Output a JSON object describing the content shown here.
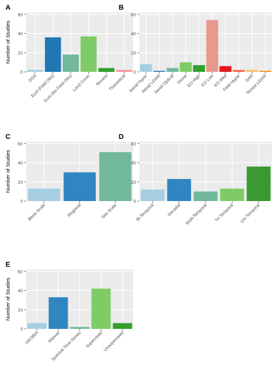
{
  "chart_data": [
    {
      "panel": "A",
      "type": "bar",
      "ylabel": "Number of Studies",
      "ylim": [
        0,
        62
      ],
      "yticks": [
        0,
        20,
        40,
        60
      ],
      "categories": [
        "DSS",
        "Ecol (Field Obs)",
        "Ecol (No Field Obs)",
        "Land Cover",
        "Review",
        "Theoretical"
      ],
      "values": [
        2,
        36,
        18,
        37,
        4,
        2
      ],
      "colors": [
        "#a6cee3",
        "#1f78b4",
        "#72b89c",
        "#7fcc67",
        "#33a02c",
        "#fb9a99"
      ]
    },
    {
      "panel": "B",
      "type": "bar",
      "ylabel": "",
      "ylim": [
        0,
        62
      ],
      "yticks": [
        0,
        20,
        40,
        60
      ],
      "categories": [
        "Aerial Hyper",
        "Aerial LiDAR",
        "Aerial Optical",
        "Drone",
        "EO High",
        "EO Low",
        "EO Med",
        "Field Hyper",
        "SAR",
        "Terrest LiDAR"
      ],
      "values": [
        8,
        1,
        4,
        10,
        7,
        54,
        6,
        2,
        2,
        1
      ],
      "colors": [
        "#a6cee3",
        "#1f78b4",
        "#72b89c",
        "#7fcc67",
        "#33a02c",
        "#e8998d",
        "#e31a1c",
        "#fb6a4a",
        "#fdbf6f",
        "#ff7f00"
      ]
    },
    {
      "panel": "C",
      "type": "bar",
      "ylabel": "Number of Studies",
      "ylim": [
        0,
        62
      ],
      "yticks": [
        0,
        20,
        40,
        60
      ],
      "categories": [
        "Block Scale",
        "Regional",
        "Site Scale"
      ],
      "values": [
        13,
        30,
        51
      ],
      "colors": [
        "#a6cee3",
        "#2f86c1",
        "#72b89c"
      ]
    },
    {
      "panel": "D",
      "type": "bar",
      "ylabel": "",
      "ylim": [
        0,
        62
      ],
      "yticks": [
        0,
        20,
        40,
        60
      ],
      "categories": [
        "Bi-Temporal",
        "Decadal",
        "Multi-Temporal",
        "Tri-Temporal",
        "Uni-Temporal"
      ],
      "values": [
        12,
        23,
        10,
        13,
        36
      ],
      "colors": [
        "#a6cee3",
        "#2f86c1",
        "#72b89c",
        "#7fcc67",
        "#3a9a32"
      ]
    },
    {
      "panel": "E",
      "type": "bar",
      "ylabel": "Number of Studies",
      "ylim": [
        0,
        62
      ],
      "yticks": [
        0,
        20,
        40,
        60
      ],
      "categories": [
        "GEOBIA",
        "Manual",
        "Spectral Time-Series",
        "Supervised",
        "Unsupervised"
      ],
      "values": [
        6,
        33,
        2,
        42,
        6
      ],
      "colors": [
        "#a6cee3",
        "#2f86c1",
        "#72b89c",
        "#7fcc67",
        "#33a02c"
      ]
    }
  ],
  "style": {
    "panel_bg": "#ebebeb",
    "grid_major": "#ffffff",
    "grid_minor": "#f4f4f4",
    "axis_text": "#4d4d4d",
    "label_text": "#000000"
  }
}
